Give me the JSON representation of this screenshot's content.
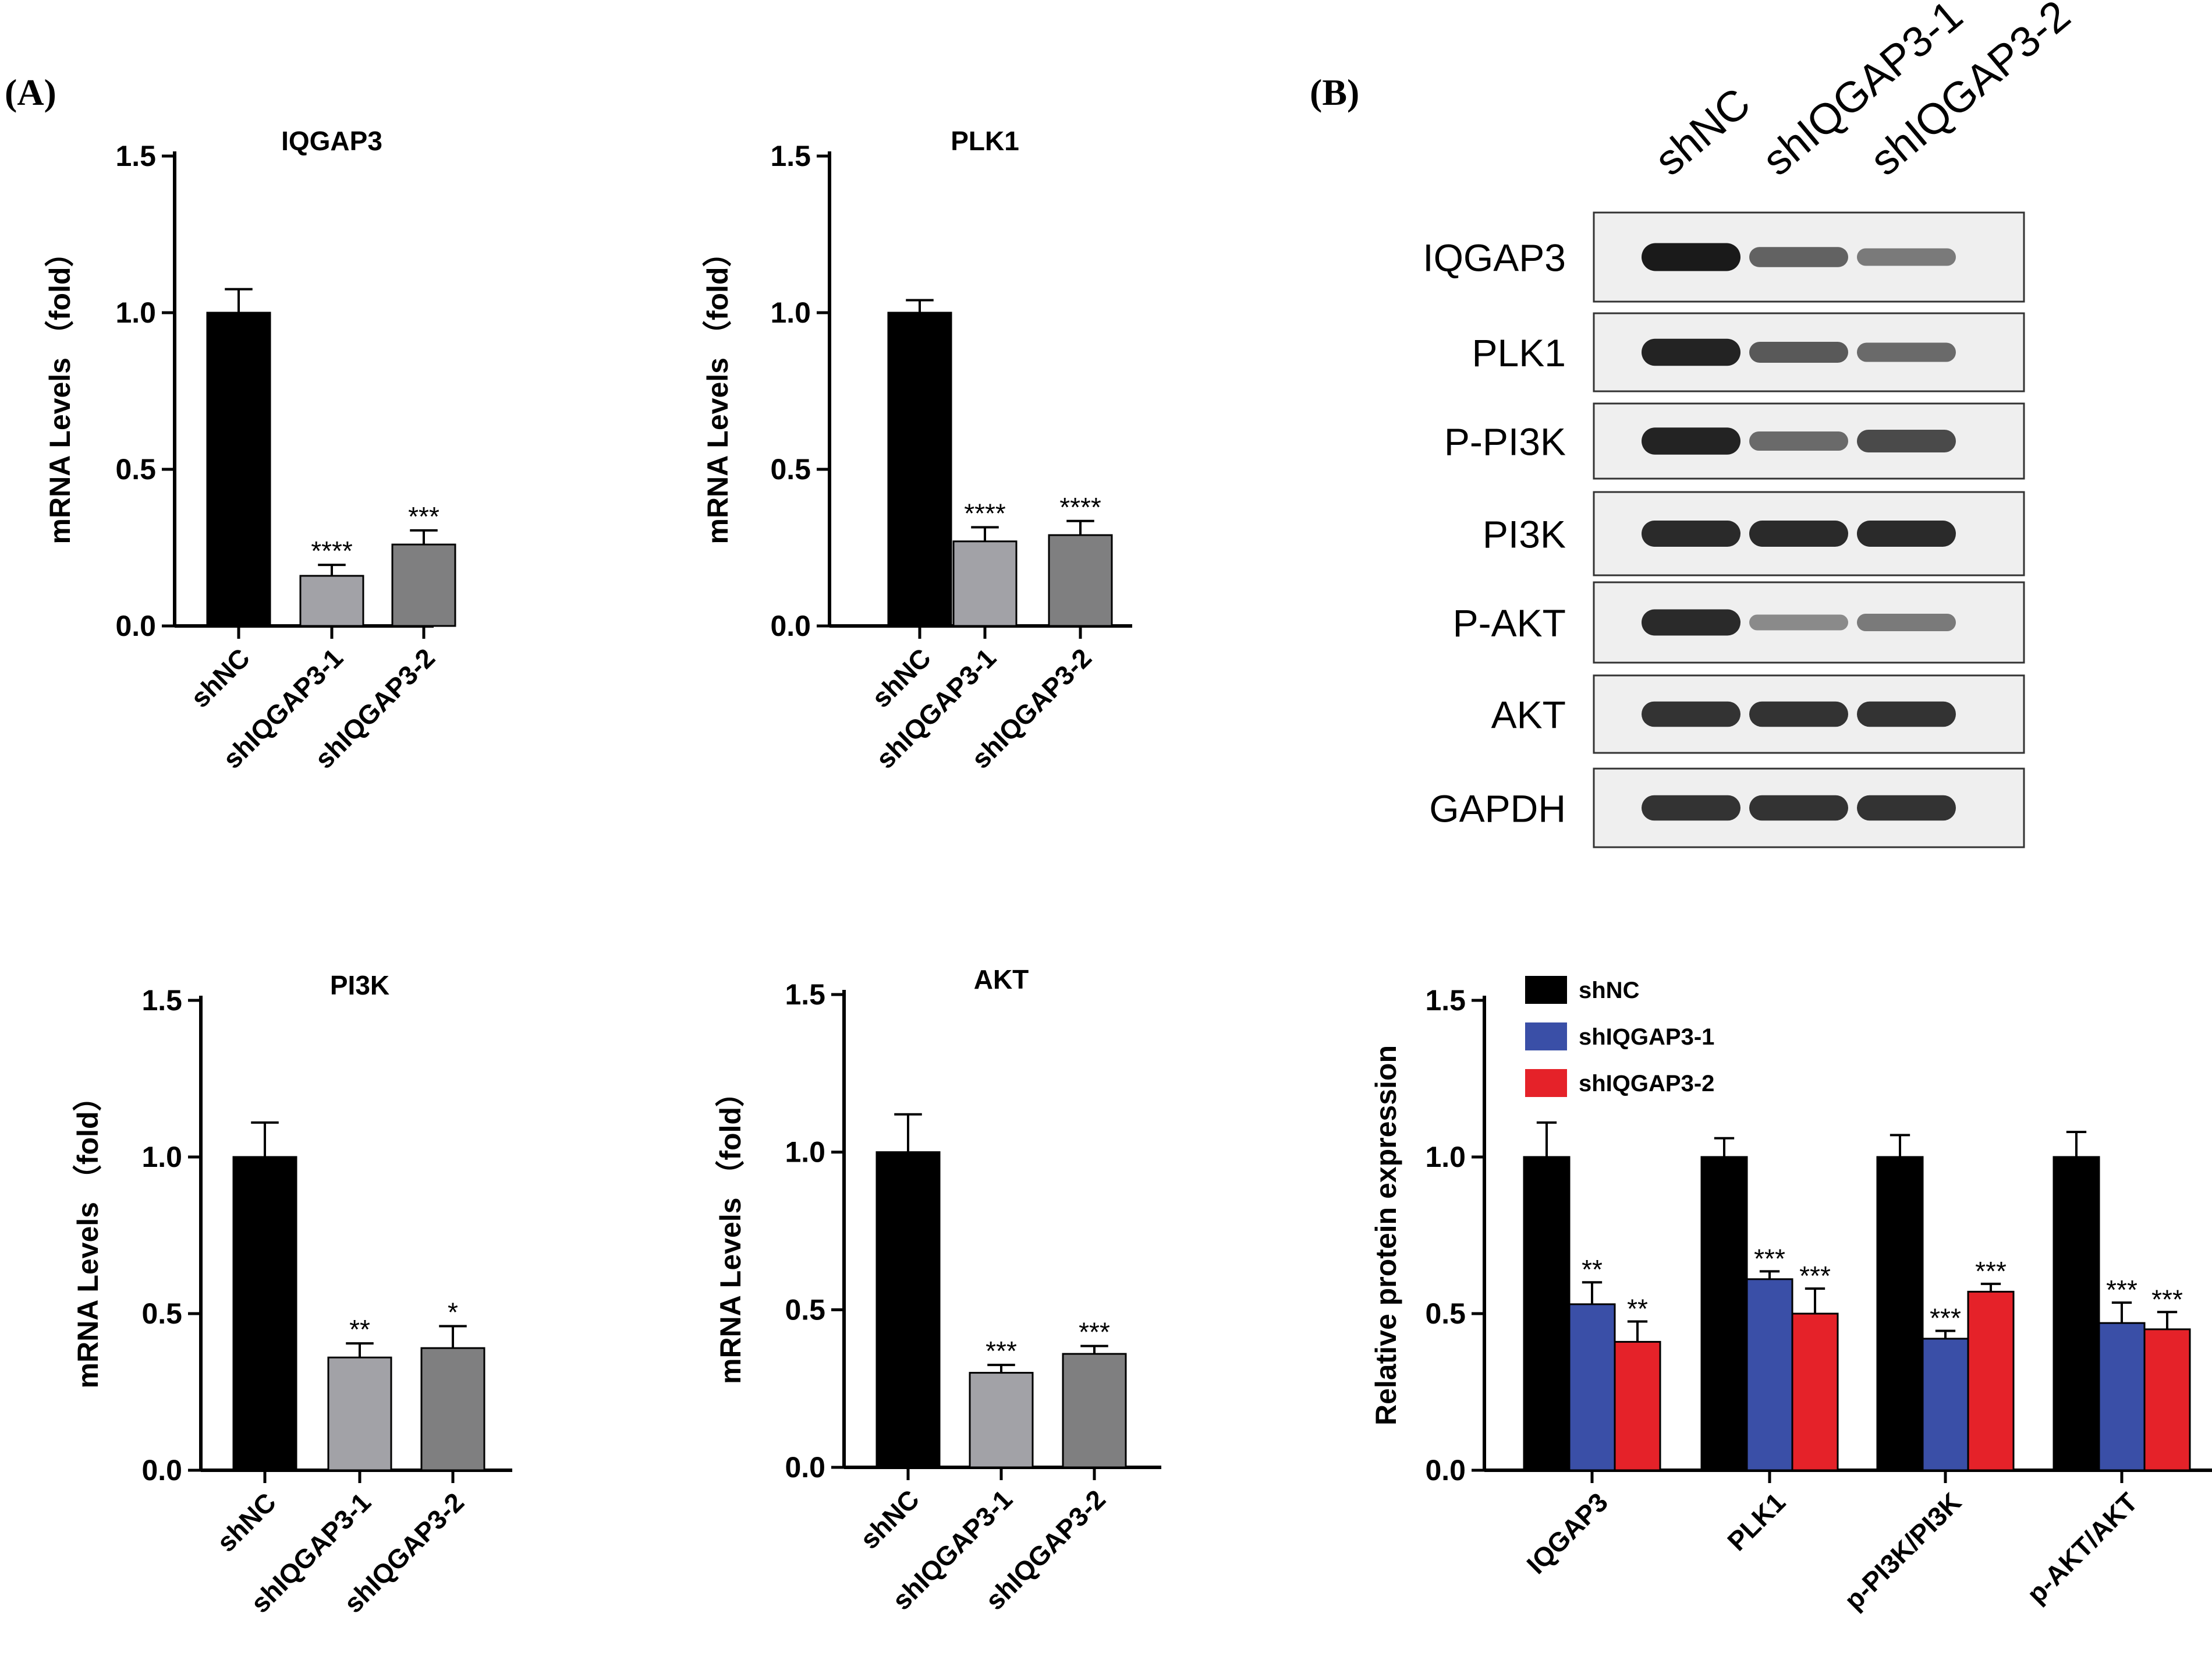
{
  "panels": {
    "a": "(A)",
    "b": "(B)"
  },
  "colors": {
    "shNC_bar": "#000000",
    "sh1_bar": "#a2a2a7",
    "sh2_bar": "#7f7f80",
    "legend_shNC": "#000000",
    "legend_sh1": "#3a4fa7",
    "legend_sh2": "#e52229",
    "band": "#1a1a1a"
  },
  "western_blot": {
    "columns": [
      "shNC",
      "shIQGAP3-1",
      "shIQGAP3-2"
    ],
    "rows": [
      "IQGAP3",
      "PLK1",
      "P-PI3K",
      "PI3K",
      "P-AKT",
      "AKT",
      "GAPDH"
    ],
    "band_intensity": [
      [
        1.0,
        0.55,
        0.4
      ],
      [
        0.95,
        0.6,
        0.5
      ],
      [
        0.95,
        0.5,
        0.7
      ],
      [
        0.9,
        0.9,
        0.9
      ],
      [
        0.9,
        0.3,
        0.4
      ],
      [
        0.85,
        0.85,
        0.85
      ],
      [
        0.85,
        0.85,
        0.85
      ]
    ]
  },
  "chart_data": [
    {
      "type": "bar",
      "title": "IQGAP3",
      "ylabel": "mRNA Levels （fold）",
      "ylim": [
        0,
        1.5
      ],
      "yticks": [
        "0.0",
        "0.5",
        "1.0",
        "1.5"
      ],
      "categories": [
        "shNC",
        "shIQGAP3-1",
        "shIQGAP3-2"
      ],
      "values": [
        1.0,
        0.16,
        0.26
      ],
      "errors": [
        0.075,
        0.035,
        0.045
      ],
      "significance": [
        "",
        "****",
        "***"
      ]
    },
    {
      "type": "bar",
      "title": "PLK1",
      "ylabel": "mRNA Levels （fold）",
      "ylim": [
        0,
        1.5
      ],
      "yticks": [
        "0.0",
        "0.5",
        "1.0",
        "1.5"
      ],
      "categories": [
        "shNC",
        "shIQGAP3-1",
        "shIQGAP3-2"
      ],
      "values": [
        1.0,
        0.27,
        0.29
      ],
      "errors": [
        0.04,
        0.045,
        0.045
      ],
      "significance": [
        "",
        "****",
        "****"
      ]
    },
    {
      "type": "bar",
      "title": "PI3K",
      "ylabel": "mRNA Levels （fold）",
      "ylim": [
        0,
        1.5
      ],
      "yticks": [
        "0.0",
        "0.5",
        "1.0",
        "1.5"
      ],
      "categories": [
        "shNC",
        "shIQGAP3-1",
        "shIQGAP3-2"
      ],
      "values": [
        1.0,
        0.36,
        0.39
      ],
      "errors": [
        0.11,
        0.045,
        0.07
      ],
      "significance": [
        "",
        "**",
        "*"
      ]
    },
    {
      "type": "bar",
      "title": "AKT",
      "ylabel": "mRNA Levels （fold）",
      "ylim": [
        0,
        1.5
      ],
      "yticks": [
        "0.0",
        "0.5",
        "1.0",
        "1.5"
      ],
      "categories": [
        "shNC",
        "shIQGAP3-1",
        "shIQGAP3-2"
      ],
      "values": [
        1.0,
        0.3,
        0.36
      ],
      "errors": [
        0.12,
        0.025,
        0.025
      ],
      "significance": [
        "",
        "***",
        "***"
      ]
    },
    {
      "type": "bar",
      "title": "",
      "ylabel": "Relative protein expression",
      "ylim": [
        0,
        1.5
      ],
      "yticks": [
        "0.0",
        "0.5",
        "1.0",
        "1.5"
      ],
      "categories": [
        "IQGAP3",
        "PLK1",
        "p-PI3K/PI3K",
        "p-AKT/AKT"
      ],
      "legend": {
        "position": "top-left"
      },
      "series": [
        {
          "name": "shNC",
          "values": [
            1.0,
            1.0,
            1.0,
            1.0
          ],
          "errors": [
            0.11,
            0.06,
            0.07,
            0.08
          ],
          "significance": [
            "",
            "",
            "",
            ""
          ]
        },
        {
          "name": "shIQGAP3-1",
          "values": [
            0.53,
            0.61,
            0.42,
            0.47
          ],
          "errors": [
            0.07,
            0.025,
            0.025,
            0.065
          ],
          "significance": [
            "**",
            "***",
            "***",
            "***"
          ]
        },
        {
          "name": "shIQGAP3-2",
          "values": [
            0.41,
            0.5,
            0.57,
            0.45
          ],
          "errors": [
            0.065,
            0.08,
            0.025,
            0.055
          ],
          "significance": [
            "**",
            "***",
            "***",
            "***"
          ]
        }
      ]
    }
  ]
}
